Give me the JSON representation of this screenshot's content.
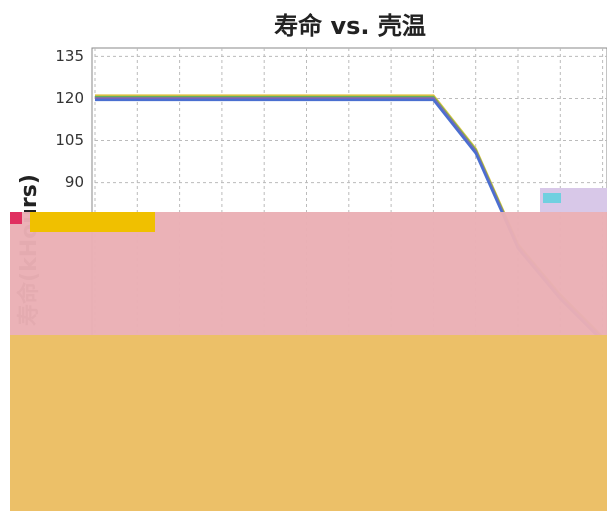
{
  "chart_data": {
    "type": "line",
    "title": "寿命 vs. 壳温",
    "ylabel": "寿命(kHours)",
    "categories": [
      null,
      null,
      null,
      null,
      null,
      null,
      null,
      null,
      null,
      null,
      null,
      null,
      null
    ],
    "series": [
      {
        "color": "#e0c040",
        "values": [
          121,
          121,
          121,
          121,
          121,
          121,
          121,
          121,
          121,
          102,
          68,
          50,
          35
        ]
      },
      {
        "color": "#60b060",
        "values": [
          120.5,
          120.5,
          120.5,
          120.5,
          120.5,
          120.5,
          120.5,
          120.5,
          120.5,
          101.5,
          67.5,
          49.5,
          34.5
        ]
      },
      {
        "color": "#9060b0",
        "values": [
          120,
          120,
          120,
          120,
          120,
          120,
          120,
          120,
          120,
          101,
          67,
          49,
          34
        ]
      },
      {
        "color": "#4a6fd0",
        "values": [
          119.5,
          119.5,
          119.5,
          119.5,
          119.5,
          119.5,
          119.5,
          119.5,
          119.5,
          100.5,
          66.5,
          48.5,
          33.5
        ]
      }
    ],
    "ylim": [
      0,
      138
    ],
    "yticks": [
      90,
      105,
      120,
      135
    ],
    "grid": true
  }
}
